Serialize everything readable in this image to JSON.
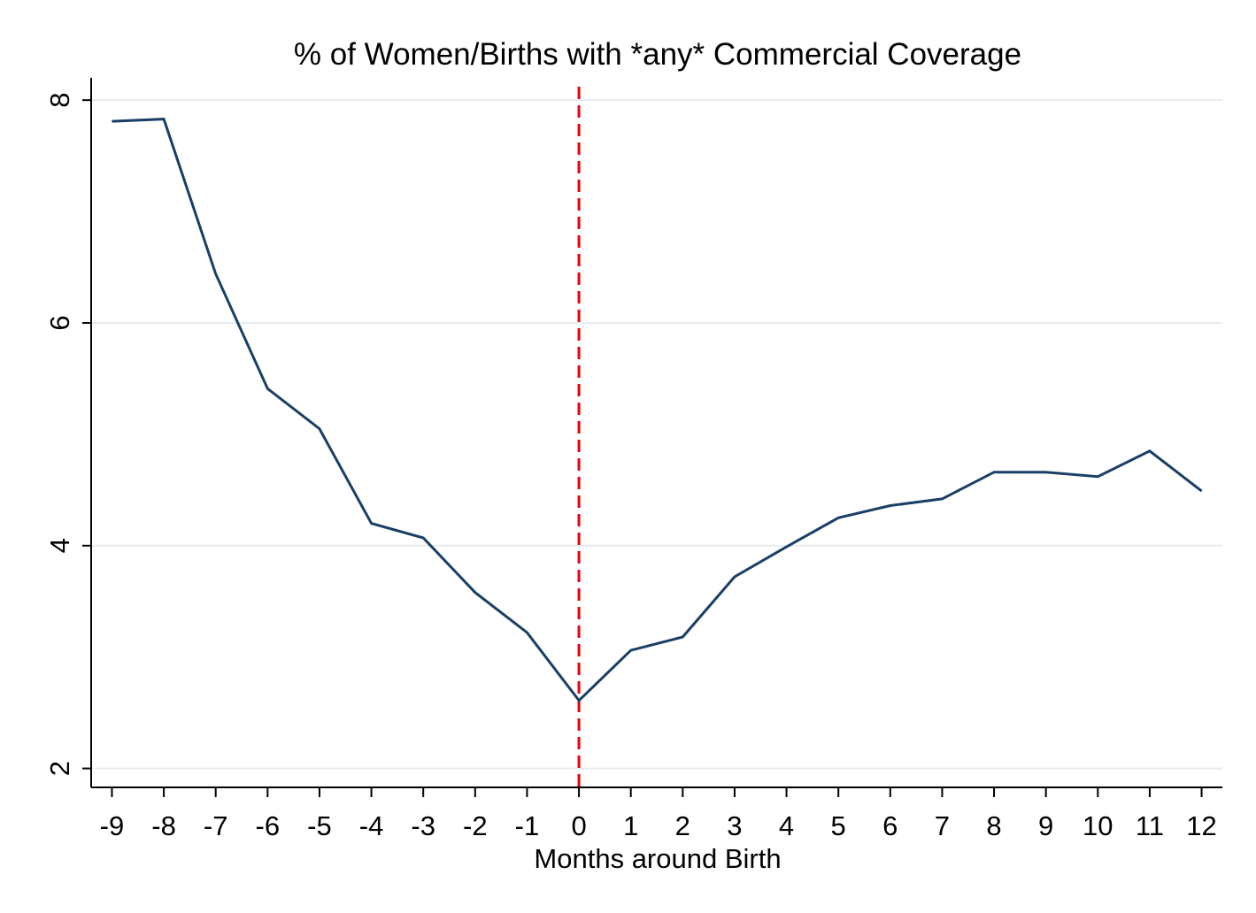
{
  "chart_data": {
    "type": "line",
    "title": "% of Women/Births with *any* Commercial Coverage",
    "xlabel": "Months around Birth",
    "ylabel": "",
    "x": [
      -9,
      -8,
      -7,
      -6,
      -5,
      -4,
      -3,
      -2,
      -1,
      0,
      1,
      2,
      3,
      4,
      5,
      6,
      7,
      8,
      9,
      10,
      11,
      12
    ],
    "series": [
      {
        "name": "",
        "values": [
          7.81,
          7.83,
          6.44,
          5.41,
          5.05,
          4.2,
          4.07,
          3.58,
          3.22,
          2.61,
          3.06,
          3.18,
          3.72,
          3.99,
          4.25,
          4.36,
          4.42,
          4.66,
          4.66,
          4.62,
          4.85,
          4.49
        ]
      }
    ],
    "xlim": [
      -9.4,
      12.4
    ],
    "ylim": [
      1.83,
      8.2
    ],
    "yticks": [
      2,
      4,
      6,
      8
    ],
    "xticks": [
      -9,
      -8,
      -7,
      -6,
      -5,
      -4,
      -3,
      -2,
      -1,
      0,
      1,
      2,
      3,
      4,
      5,
      6,
      7,
      8,
      9,
      10,
      11,
      12
    ],
    "reference_line": {
      "x": 0,
      "style": "dashed",
      "color": "#e8000b"
    },
    "grid": true,
    "colors": {
      "line": "#1a3f66",
      "grid": "#e6ecef"
    }
  }
}
